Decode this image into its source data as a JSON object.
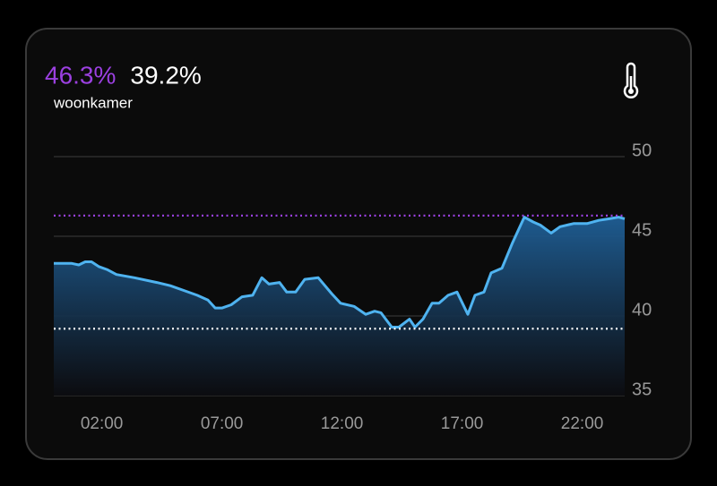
{
  "chart_data": {
    "type": "area",
    "name": "woonkamer",
    "max_line": {
      "value": 46.3,
      "label": "46.3%",
      "color": "#9b40e0"
    },
    "min_line": {
      "value": 39.2,
      "label": "39.2%",
      "color": "#ffffff"
    },
    "x": [
      0,
      0.75,
      1.04,
      1.31,
      1.57,
      1.87,
      2.24,
      2.61,
      3.36,
      4.29,
      4.85,
      5.41,
      5.97,
      6.42,
      6.72,
      7.01,
      7.39,
      7.84,
      8.28,
      8.66,
      8.96,
      9.4,
      9.7,
      10.07,
      10.45,
      11.01,
      11.57,
      11.94,
      12.5,
      12.99,
      13.36,
      13.62,
      14.07,
      14.37,
      14.81,
      15.04,
      15.37,
      15.75,
      16.04,
      16.42,
      16.79,
      17.24,
      17.54,
      17.91,
      18.21,
      18.66,
      19.1,
      19.59,
      19.96,
      20.26,
      20.71,
      21.08,
      21.64,
      22.2,
      22.69,
      23.13,
      23.51,
      23.77
    ],
    "series": [
      {
        "color": "#4fb3f0",
        "values": [
          43.3,
          43.3,
          43.2,
          43.4,
          43.4,
          43.1,
          42.9,
          42.6,
          42.4,
          42.1,
          41.9,
          41.6,
          41.3,
          41.0,
          40.5,
          40.5,
          40.7,
          41.2,
          41.3,
          42.4,
          42.0,
          42.1,
          41.5,
          41.5,
          42.3,
          42.4,
          41.4,
          40.8,
          40.6,
          40.1,
          40.3,
          40.2,
          39.3,
          39.3,
          39.8,
          39.3,
          39.8,
          40.8,
          40.8,
          41.3,
          41.5,
          40.1,
          41.3,
          41.5,
          42.7,
          43.0,
          44.6,
          46.2,
          45.9,
          45.7,
          45.2,
          45.6,
          45.8,
          45.8,
          46.0,
          46.1,
          46.2,
          46.1
        ]
      }
    ],
    "xlim": [
      0,
      23.77
    ],
    "xticks": [
      {
        "value": 2,
        "label": "02:00"
      },
      {
        "value": 7,
        "label": "07:00"
      },
      {
        "value": 12,
        "label": "12:00"
      },
      {
        "value": 17,
        "label": "17:00"
      },
      {
        "value": 22,
        "label": "22:00"
      }
    ],
    "ylim": [
      35,
      50
    ],
    "yticks": [
      35,
      40,
      45,
      50
    ],
    "grid": true
  }
}
